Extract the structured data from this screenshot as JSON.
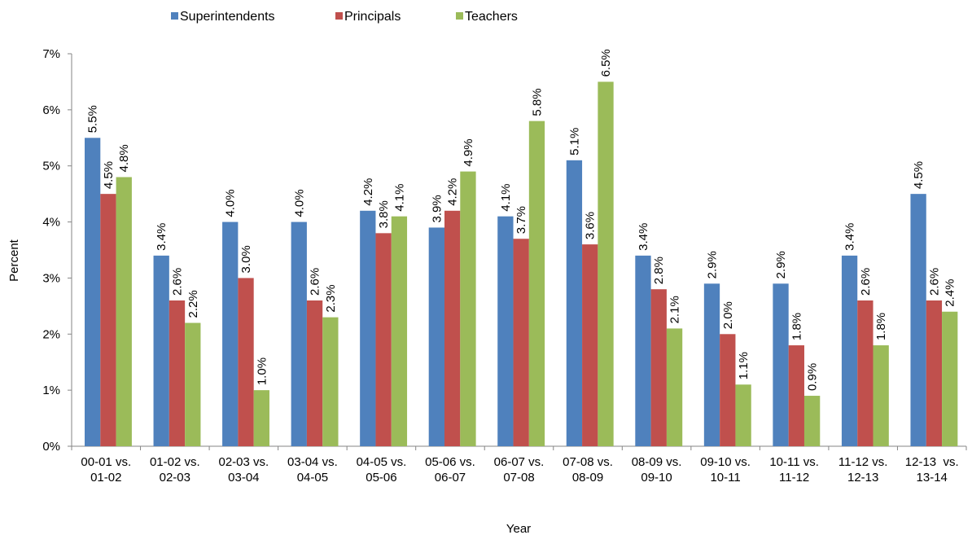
{
  "chart_data": {
    "type": "bar",
    "title": "",
    "xlabel": "Year",
    "ylabel": "Percent",
    "ylim": [
      0,
      7
    ],
    "yticks": [
      "0%",
      "1%",
      "2%",
      "3%",
      "4%",
      "5%",
      "6%",
      "7%"
    ],
    "grid": false,
    "legend_position": "top-center",
    "categories": [
      [
        "00-01 vs.",
        "01-02"
      ],
      [
        "01-02 vs.",
        "02-03"
      ],
      [
        "02-03 vs.",
        "03-04"
      ],
      [
        "03-04 vs.",
        "04-05"
      ],
      [
        "04-05 vs.",
        "05-06"
      ],
      [
        "05-06 vs.",
        "06-07"
      ],
      [
        "06-07 vs.",
        "07-08"
      ],
      [
        "07-08 vs.",
        "08-09"
      ],
      [
        "08-09 vs.",
        "09-10"
      ],
      [
        "09-10 vs.",
        "10-11"
      ],
      [
        "10-11 vs.",
        "11-12"
      ],
      [
        "11-12 vs.",
        "12-13"
      ],
      [
        "12-13  vs.",
        "13-14"
      ]
    ],
    "series": [
      {
        "name": "Superintendents",
        "color": "#4F81BD",
        "values": [
          5.5,
          3.4,
          4.0,
          4.0,
          4.2,
          3.9,
          4.1,
          5.1,
          3.4,
          2.9,
          2.9,
          3.4,
          4.5
        ]
      },
      {
        "name": "Principals",
        "color": "#C0504D",
        "values": [
          4.5,
          2.6,
          3.0,
          2.6,
          3.8,
          4.2,
          3.7,
          3.6,
          2.8,
          2.0,
          1.8,
          2.6,
          2.6
        ]
      },
      {
        "name": "Teachers",
        "color": "#9BBB59",
        "values": [
          4.8,
          2.2,
          1.0,
          2.3,
          4.1,
          4.9,
          5.8,
          6.5,
          2.1,
          1.1,
          0.9,
          1.8,
          2.4
        ]
      }
    ],
    "data_labels": [
      [
        "5.5%",
        "3.4%",
        "4.0%",
        "4.0%",
        "4.2%",
        "3.9%",
        "4.1%",
        "5.1%",
        "3.4%",
        "2.9%",
        "2.9%",
        "3.4%",
        "4.5%"
      ],
      [
        "4.5%",
        "2.6%",
        "3.0%",
        "2.6%",
        "3.8%",
        "4.2%",
        "3.7%",
        "3.6%",
        "2.8%",
        "2.0%",
        "1.8%",
        "2.6%",
        "2.6%"
      ],
      [
        "4.8%",
        "2.2%",
        "1.0%",
        "2.3%",
        "4.1%",
        "4.9%",
        "5.8%",
        "6.5%",
        "2.1%",
        "1.1%",
        "0.9%",
        "1.8%",
        "2.4%"
      ]
    ]
  }
}
